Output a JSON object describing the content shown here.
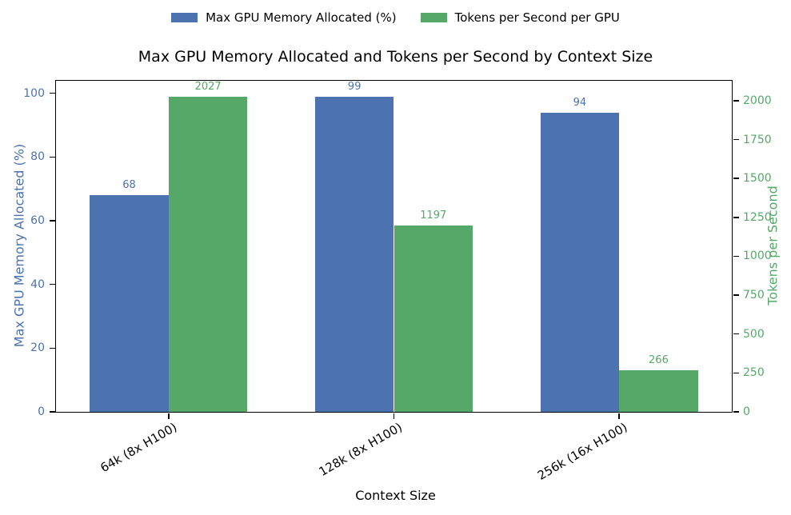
{
  "chart_data": {
    "type": "bar",
    "title": "Max GPU Memory Allocated and Tokens per Second by Context Size",
    "xlabel": "Context Size",
    "categories": [
      "64k (8x H100)",
      "128k (8x H100)",
      "256k (16x H100)"
    ],
    "series": [
      {
        "name": "Max GPU Memory Allocated (%)",
        "axis": "left",
        "color": "#4C72B0",
        "values": [
          68,
          99,
          94
        ]
      },
      {
        "name": "Tokens per Second per GPU",
        "axis": "right",
        "color": "#55A868",
        "values": [
          2027,
          1197,
          266
        ]
      }
    ],
    "left_axis": {
      "label": "Max GPU Memory Allocated (%)",
      "color": "#4C72B0",
      "ticks": [
        0,
        20,
        40,
        60,
        80,
        100
      ],
      "max": 103.95
    },
    "right_axis": {
      "label": "Tokens per Second",
      "color": "#55A868",
      "ticks": [
        0,
        250,
        500,
        750,
        1000,
        1250,
        1500,
        1750,
        2000
      ],
      "max": 2128
    },
    "legend_position": "top-center",
    "grid": false,
    "bar_width_fraction": 0.35,
    "xtick_rotation_deg": 30
  }
}
